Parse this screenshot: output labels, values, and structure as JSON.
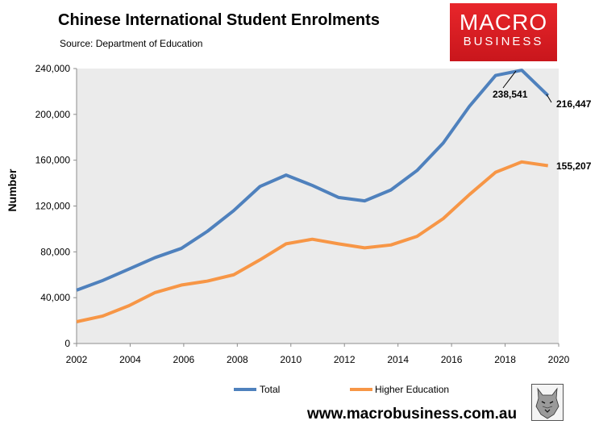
{
  "header": {
    "title": "Chinese International Student Enrolments",
    "subtitle": "Source: Department of Education"
  },
  "logo": {
    "line1": "MACRO",
    "line2": "BUSINESS"
  },
  "footer": {
    "website": "www.macrobusiness.com.au"
  },
  "icons": {
    "mascot": "wolf-logo-icon"
  },
  "colors": {
    "total": "#4f81bd",
    "higher_education": "#f79646",
    "plot_bg": "#ebebeb",
    "brand_red": "#d71920"
  },
  "chart_data": {
    "type": "line",
    "xlabel": "",
    "ylabel": "Number",
    "xlim": [
      2002,
      2020
    ],
    "ylim": [
      0,
      240000
    ],
    "xticks": [
      "2002",
      "2004",
      "2006",
      "2008",
      "2010",
      "2012",
      "2014",
      "2016",
      "2018",
      "2020"
    ],
    "yticks": [
      "0",
      "40,000",
      "80,000",
      "120,000",
      "160,000",
      "200,000",
      "240,000"
    ],
    "x": [
      2002,
      2003,
      2004,
      2005,
      2006,
      2007,
      2008,
      2009,
      2010,
      2011,
      2012,
      2013,
      2014,
      2015,
      2016,
      2017,
      2018,
      2019,
      2020
    ],
    "series": [
      {
        "name": "Total",
        "values": [
          46500,
          55000,
          65000,
          75000,
          83000,
          98000,
          116000,
          137000,
          147000,
          138000,
          127500,
          124500,
          134000,
          151000,
          175000,
          207000,
          234000,
          238541,
          216447
        ]
      },
      {
        "name": "Higher Education",
        "values": [
          19000,
          24000,
          33000,
          44500,
          51000,
          54500,
          60000,
          73000,
          87000,
          91000,
          87000,
          83500,
          86000,
          93500,
          109000,
          130000,
          149500,
          158500,
          155207
        ]
      }
    ],
    "annotations": [
      "238,541",
      "216,447",
      "155,207"
    ],
    "legend_position": "bottom",
    "grid": false
  }
}
